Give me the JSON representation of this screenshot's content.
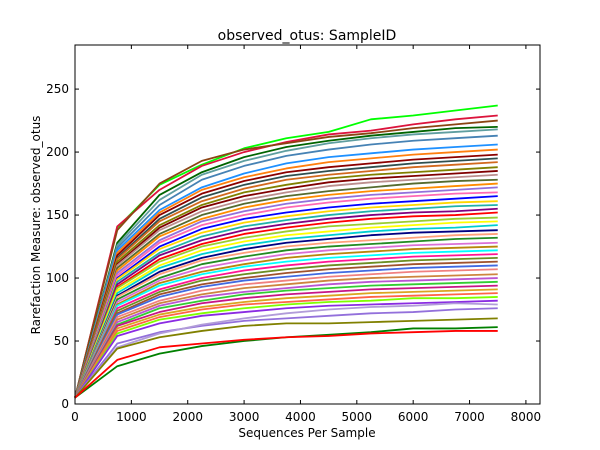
{
  "chart_data": {
    "type": "line",
    "title": "observed_otus: SampleID",
    "xlabel": "Sequences Per Sample",
    "ylabel": "Rarefaction Measure: observed_otus",
    "xlim": [
      0,
      8250
    ],
    "ylim": [
      0,
      285
    ],
    "xticks": [
      0,
      1000,
      2000,
      3000,
      4000,
      5000,
      6000,
      7000,
      8000
    ],
    "yticks": [
      0,
      50,
      100,
      150,
      200,
      250
    ],
    "grid": false,
    "legend": "none",
    "x": [
      0,
      750,
      1500,
      2250,
      3000,
      3750,
      4500,
      5250,
      6000,
      6750,
      7500
    ],
    "series": [
      {
        "color": "#00ff00",
        "values": [
          5,
          140,
          174,
          190,
          203,
          211,
          216,
          226,
          229,
          233,
          237
        ]
      },
      {
        "color": "#dc143c",
        "values": [
          5,
          141,
          170,
          189,
          200,
          208,
          214,
          217,
          222,
          226,
          229
        ]
      },
      {
        "color": "#8b4513",
        "values": [
          5,
          138,
          175,
          193,
          202,
          207,
          212,
          215,
          219,
          222,
          225
        ]
      },
      {
        "color": "#006400",
        "values": [
          5,
          128,
          166,
          184,
          196,
          204,
          209,
          213,
          216,
          219,
          220
        ]
      },
      {
        "color": "#5f9ea0",
        "values": [
          5,
          126,
          162,
          182,
          193,
          201,
          207,
          211,
          214,
          216,
          218
        ]
      },
      {
        "color": "#4682b4",
        "values": [
          5,
          124,
          158,
          178,
          189,
          197,
          202,
          206,
          209,
          211,
          213
        ]
      },
      {
        "color": "#1e90ff",
        "values": [
          5,
          122,
          154,
          172,
          183,
          191,
          196,
          199,
          202,
          204,
          206
        ]
      },
      {
        "color": "#ff7f0e",
        "values": [
          5,
          120,
          152,
          170,
          180,
          187,
          192,
          195,
          198,
          200,
          202
        ]
      },
      {
        "color": "#8b0000",
        "values": [
          5,
          118,
          150,
          167,
          177,
          184,
          188,
          191,
          194,
          196,
          198
        ]
      },
      {
        "color": "#2f4f4f",
        "values": [
          5,
          116,
          147,
          164,
          174,
          181,
          185,
          188,
          191,
          193,
          195
        ]
      },
      {
        "color": "#d2691e",
        "values": [
          5,
          115,
          145,
          161,
          171,
          178,
          182,
          185,
          188,
          190,
          192
        ]
      },
      {
        "color": "#808000",
        "values": [
          5,
          113,
          142,
          158,
          168,
          174,
          179,
          182,
          184,
          186,
          188
        ]
      },
      {
        "color": "#800000",
        "values": [
          5,
          111,
          140,
          156,
          165,
          171,
          176,
          179,
          181,
          183,
          185
        ]
      },
      {
        "color": "#bc8f8f",
        "values": [
          5,
          110,
          138,
          153,
          162,
          168,
          173,
          176,
          178,
          180,
          182
        ]
      },
      {
        "color": "#556b2f",
        "values": [
          5,
          108,
          135,
          150,
          159,
          165,
          169,
          172,
          175,
          177,
          178
        ]
      },
      {
        "color": "#ff8c00",
        "values": [
          5,
          106,
          133,
          147,
          156,
          162,
          166,
          169,
          171,
          173,
          175
        ]
      },
      {
        "color": "#9370db",
        "values": [
          5,
          104,
          130,
          145,
          153,
          159,
          163,
          166,
          168,
          170,
          172
        ]
      },
      {
        "color": "#ff69b4",
        "values": [
          5,
          102,
          128,
          142,
          150,
          156,
          160,
          163,
          165,
          167,
          168
        ]
      },
      {
        "color": "#0000ff",
        "values": [
          5,
          100,
          125,
          139,
          147,
          152,
          156,
          159,
          161,
          163,
          165
        ]
      },
      {
        "color": "#ffd700",
        "values": [
          5,
          99,
          123,
          136,
          144,
          149,
          153,
          156,
          158,
          160,
          161
        ]
      },
      {
        "color": "#20b2aa",
        "values": [
          5,
          97,
          120,
          133,
          141,
          146,
          150,
          153,
          155,
          157,
          158
        ]
      },
      {
        "color": "#800080",
        "values": [
          5,
          95,
          118,
          130,
          138,
          143,
          147,
          150,
          152,
          153,
          155
        ]
      },
      {
        "color": "#ff0000",
        "values": [
          5,
          93,
          115,
          127,
          135,
          140,
          144,
          147,
          149,
          150,
          152
        ]
      },
      {
        "color": "#9acd32",
        "values": [
          5,
          92,
          113,
          125,
          132,
          137,
          141,
          143,
          145,
          147,
          148
        ]
      },
      {
        "color": "#ffff00",
        "values": [
          5,
          90,
          110,
          122,
          129,
          134,
          137,
          140,
          142,
          144,
          145
        ]
      },
      {
        "color": "#00ced1",
        "values": [
          5,
          88,
          108,
          119,
          126,
          131,
          134,
          137,
          139,
          140,
          142
        ]
      },
      {
        "color": "#000080",
        "values": [
          5,
          86,
          105,
          116,
          123,
          128,
          131,
          134,
          136,
          137,
          138
        ]
      },
      {
        "color": "#ffa07a",
        "values": [
          5,
          85,
          103,
          114,
          120,
          125,
          128,
          130,
          132,
          134,
          135
        ]
      },
      {
        "color": "#228b22",
        "values": [
          5,
          83,
          100,
          111,
          117,
          122,
          125,
          127,
          129,
          131,
          132
        ]
      },
      {
        "color": "#da70d6",
        "values": [
          5,
          81,
          98,
          108,
          114,
          119,
          122,
          124,
          126,
          127,
          128
        ]
      },
      {
        "color": "#b8860b",
        "values": [
          5,
          79,
          96,
          105,
          111,
          116,
          119,
          121,
          123,
          124,
          125
        ]
      },
      {
        "color": "#00ffff",
        "values": [
          5,
          78,
          94,
          103,
          109,
          113,
          116,
          118,
          120,
          121,
          122
        ]
      },
      {
        "color": "#ff1493",
        "values": [
          5,
          76,
          91,
          100,
          106,
          110,
          113,
          115,
          117,
          118,
          119
        ]
      },
      {
        "color": "#6b8e23",
        "values": [
          5,
          74,
          89,
          98,
          103,
          107,
          110,
          112,
          114,
          115,
          116
        ]
      },
      {
        "color": "#a0522d",
        "values": [
          5,
          72,
          87,
          95,
          100,
          104,
          107,
          109,
          111,
          112,
          113
        ]
      },
      {
        "color": "#4169e1",
        "values": [
          5,
          71,
          85,
          93,
          98,
          101,
          104,
          106,
          108,
          109,
          110
        ]
      },
      {
        "color": "#f08080",
        "values": [
          5,
          69,
          82,
          90,
          95,
          98,
          101,
          103,
          105,
          106,
          107
        ]
      },
      {
        "color": "#cd853f",
        "values": [
          5,
          67,
          80,
          87,
          92,
          95,
          98,
          100,
          101,
          102,
          103
        ]
      },
      {
        "color": "#ba55d3",
        "values": [
          5,
          65,
          78,
          85,
          89,
          92,
          95,
          97,
          98,
          99,
          100
        ]
      },
      {
        "color": "#32cd32",
        "values": [
          5,
          63,
          76,
          82,
          87,
          90,
          92,
          94,
          95,
          96,
          97
        ]
      },
      {
        "color": "#c71585",
        "values": [
          5,
          62,
          73,
          80,
          84,
          87,
          89,
          91,
          92,
          93,
          94
        ]
      },
      {
        "color": "#daa520",
        "values": [
          5,
          60,
          71,
          77,
          81,
          84,
          86,
          88,
          89,
          90,
          91
        ]
      },
      {
        "color": "#ff6347",
        "values": [
          5,
          58,
          69,
          75,
          79,
          81,
          83,
          85,
          86,
          87,
          88
        ]
      },
      {
        "color": "#7fff00",
        "values": [
          5,
          56,
          67,
          72,
          76,
          79,
          81,
          82,
          84,
          84,
          85
        ]
      },
      {
        "color": "#8a2be2",
        "values": [
          5,
          54,
          64,
          70,
          73,
          76,
          78,
          79,
          80,
          81,
          82
        ]
      },
      {
        "color": "#9370db",
        "values": [
          5,
          48,
          57,
          62,
          66,
          68,
          70,
          72,
          73,
          75,
          76
        ]
      },
      {
        "color": "#b19cd9",
        "values": [
          5,
          45,
          56,
          63,
          68,
          72,
          75,
          77,
          78,
          80,
          79
        ]
      },
      {
        "color": "#808000",
        "values": [
          5,
          44,
          53,
          58,
          62,
          64,
          64,
          65,
          66,
          67,
          68
        ]
      },
      {
        "color": "#008000",
        "values": [
          5,
          30,
          40,
          46,
          50,
          53,
          55,
          57,
          60,
          60,
          61
        ]
      },
      {
        "color": "#ff0000",
        "values": [
          5,
          35,
          45,
          48,
          51,
          53,
          54,
          56,
          57,
          58,
          58
        ]
      }
    ]
  }
}
